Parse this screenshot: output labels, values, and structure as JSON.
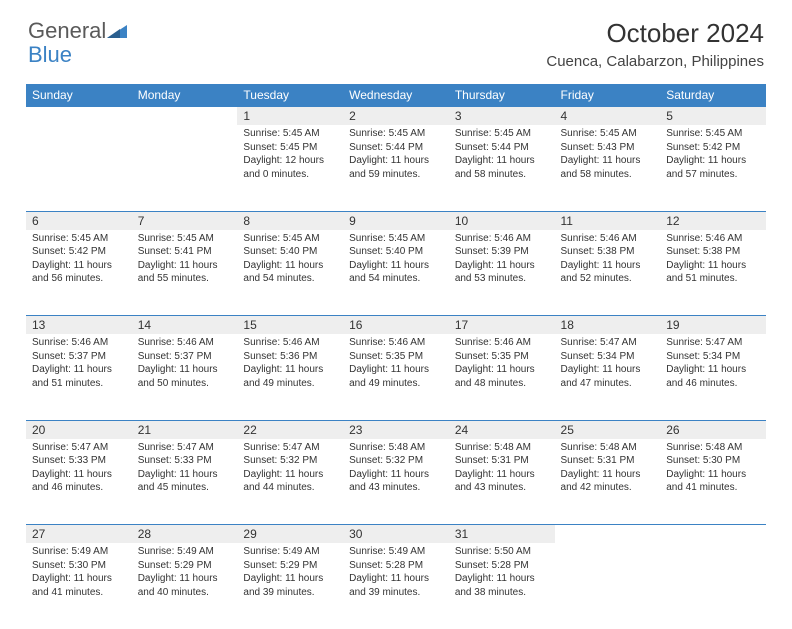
{
  "logo": {
    "general": "General",
    "blue": "Blue"
  },
  "title": "October 2024",
  "location": "Cuenca, Calabarzon, Philippines",
  "day_headers": [
    "Sunday",
    "Monday",
    "Tuesday",
    "Wednesday",
    "Thursday",
    "Friday",
    "Saturday"
  ],
  "colors": {
    "header_bg": "#3b82c4",
    "header_text": "#ffffff",
    "daynum_bg": "#eeeeee",
    "border": "#3b82c4",
    "text": "#333333",
    "logo_gray": "#5a5a5a",
    "logo_blue": "#3b82c4"
  },
  "first_weekday_index": 2,
  "days_in_month": 31,
  "days": {
    "1": {
      "sunrise": "5:45 AM",
      "sunset": "5:45 PM",
      "daylight": "12 hours and 0 minutes."
    },
    "2": {
      "sunrise": "5:45 AM",
      "sunset": "5:44 PM",
      "daylight": "11 hours and 59 minutes."
    },
    "3": {
      "sunrise": "5:45 AM",
      "sunset": "5:44 PM",
      "daylight": "11 hours and 58 minutes."
    },
    "4": {
      "sunrise": "5:45 AM",
      "sunset": "5:43 PM",
      "daylight": "11 hours and 58 minutes."
    },
    "5": {
      "sunrise": "5:45 AM",
      "sunset": "5:42 PM",
      "daylight": "11 hours and 57 minutes."
    },
    "6": {
      "sunrise": "5:45 AM",
      "sunset": "5:42 PM",
      "daylight": "11 hours and 56 minutes."
    },
    "7": {
      "sunrise": "5:45 AM",
      "sunset": "5:41 PM",
      "daylight": "11 hours and 55 minutes."
    },
    "8": {
      "sunrise": "5:45 AM",
      "sunset": "5:40 PM",
      "daylight": "11 hours and 54 minutes."
    },
    "9": {
      "sunrise": "5:45 AM",
      "sunset": "5:40 PM",
      "daylight": "11 hours and 54 minutes."
    },
    "10": {
      "sunrise": "5:46 AM",
      "sunset": "5:39 PM",
      "daylight": "11 hours and 53 minutes."
    },
    "11": {
      "sunrise": "5:46 AM",
      "sunset": "5:38 PM",
      "daylight": "11 hours and 52 minutes."
    },
    "12": {
      "sunrise": "5:46 AM",
      "sunset": "5:38 PM",
      "daylight": "11 hours and 51 minutes."
    },
    "13": {
      "sunrise": "5:46 AM",
      "sunset": "5:37 PM",
      "daylight": "11 hours and 51 minutes."
    },
    "14": {
      "sunrise": "5:46 AM",
      "sunset": "5:37 PM",
      "daylight": "11 hours and 50 minutes."
    },
    "15": {
      "sunrise": "5:46 AM",
      "sunset": "5:36 PM",
      "daylight": "11 hours and 49 minutes."
    },
    "16": {
      "sunrise": "5:46 AM",
      "sunset": "5:35 PM",
      "daylight": "11 hours and 49 minutes."
    },
    "17": {
      "sunrise": "5:46 AM",
      "sunset": "5:35 PM",
      "daylight": "11 hours and 48 minutes."
    },
    "18": {
      "sunrise": "5:47 AM",
      "sunset": "5:34 PM",
      "daylight": "11 hours and 47 minutes."
    },
    "19": {
      "sunrise": "5:47 AM",
      "sunset": "5:34 PM",
      "daylight": "11 hours and 46 minutes."
    },
    "20": {
      "sunrise": "5:47 AM",
      "sunset": "5:33 PM",
      "daylight": "11 hours and 46 minutes."
    },
    "21": {
      "sunrise": "5:47 AM",
      "sunset": "5:33 PM",
      "daylight": "11 hours and 45 minutes."
    },
    "22": {
      "sunrise": "5:47 AM",
      "sunset": "5:32 PM",
      "daylight": "11 hours and 44 minutes."
    },
    "23": {
      "sunrise": "5:48 AM",
      "sunset": "5:32 PM",
      "daylight": "11 hours and 43 minutes."
    },
    "24": {
      "sunrise": "5:48 AM",
      "sunset": "5:31 PM",
      "daylight": "11 hours and 43 minutes."
    },
    "25": {
      "sunrise": "5:48 AM",
      "sunset": "5:31 PM",
      "daylight": "11 hours and 42 minutes."
    },
    "26": {
      "sunrise": "5:48 AM",
      "sunset": "5:30 PM",
      "daylight": "11 hours and 41 minutes."
    },
    "27": {
      "sunrise": "5:49 AM",
      "sunset": "5:30 PM",
      "daylight": "11 hours and 41 minutes."
    },
    "28": {
      "sunrise": "5:49 AM",
      "sunset": "5:29 PM",
      "daylight": "11 hours and 40 minutes."
    },
    "29": {
      "sunrise": "5:49 AM",
      "sunset": "5:29 PM",
      "daylight": "11 hours and 39 minutes."
    },
    "30": {
      "sunrise": "5:49 AM",
      "sunset": "5:28 PM",
      "daylight": "11 hours and 39 minutes."
    },
    "31": {
      "sunrise": "5:50 AM",
      "sunset": "5:28 PM",
      "daylight": "11 hours and 38 minutes."
    }
  },
  "labels": {
    "sunrise": "Sunrise: ",
    "sunset": "Sunset: ",
    "daylight": "Daylight: "
  }
}
